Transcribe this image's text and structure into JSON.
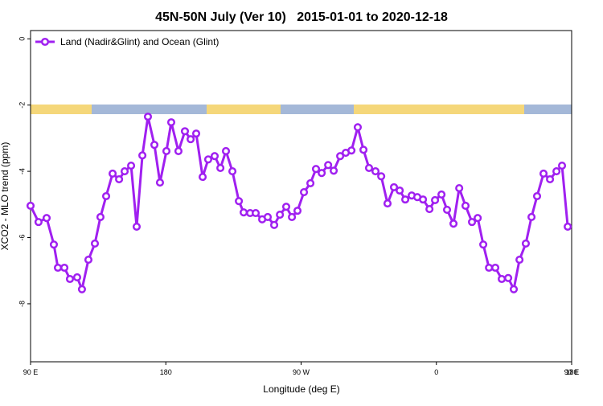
{
  "chart_data": {
    "type": "line",
    "title": "45N-50N July (Ver 10)   2015-01-01 to 2020-12-18",
    "xlabel": "Longitude (deg E)",
    "ylabel": "XCO2 - MLO trend (ppm)",
    "xlim": [
      90,
      450
    ],
    "ylim": [
      -9.75,
      0.25
    ],
    "xticks": [
      {
        "value": 90,
        "label": "90 E"
      },
      180,
      {
        "value": 270,
        "label": "90 W"
      },
      {
        "value": 360,
        "label": "0"
      },
      {
        "value": 450,
        "label": "90 E"
      },
      {
        "value": 540,
        "label": "180"
      }
    ],
    "yticks": [
      0,
      -2,
      -4,
      -6,
      -8
    ],
    "legend": "upper left",
    "series": [
      {
        "name": "Land (Nadir&Glint) and Ocean (Glint)",
        "color": "#a020f0",
        "x": [
          90,
          95.3,
          100.7,
          105.5,
          108.2,
          112.5,
          116.2,
          121,
          124.2,
          128.5,
          132.8,
          136.5,
          140.3,
          144.6,
          148.9,
          152.6,
          156.9,
          160.6,
          164.4,
          168.1,
          172.4,
          176.1,
          180.4,
          183.6,
          188.4,
          192.7,
          196.5,
          200.2,
          204.5,
          208.2,
          212.5,
          216.3,
          220,
          224.3,
          228.6,
          231.8,
          236.1,
          239.8,
          244.1,
          247.8,
          252.1,
          255.9,
          260.1,
          263.9,
          267.6,
          271.9,
          276.2,
          279.9,
          283.7,
          288,
          291.7,
          296,
          299.7,
          303.5,
          307.7,
          311.5,
          315.2,
          319.5,
          323.3,
          327.5,
          331.8,
          335.6,
          339.3,
          343.6,
          347.3,
          351.1,
          355.4,
          359.1,
          363.4,
          367.1,
          371.4,
          375.2,
          379.4,
          383.7,
          387.5,
          391.2,
          395,
          399.2,
          403.5,
          407.8,
          411.5,
          415.3,
          419.5,
          423.3,
          427,
          431.3,
          435.6,
          439.9,
          443.6,
          447.4
        ],
        "values": [
          -5.04,
          -5.53,
          -5.41,
          -6.21,
          -6.91,
          -6.91,
          -7.25,
          -7.2,
          -7.56,
          -6.67,
          -6.18,
          -5.38,
          -4.75,
          -4.07,
          -4.24,
          -4.0,
          -3.83,
          -5.67,
          -3.52,
          -2.35,
          -3.2,
          -4.34,
          -3.39,
          -2.52,
          -3.39,
          -2.79,
          -3.03,
          -2.86,
          -4.17,
          -3.64,
          -3.54,
          -3.9,
          -3.39,
          -4.0,
          -4.9,
          -5.24,
          -5.26,
          -5.26,
          -5.45,
          -5.38,
          -5.62,
          -5.31,
          -5.07,
          -5.38,
          -5.19,
          -4.63,
          -4.36,
          -3.93,
          -4.05,
          -3.81,
          -3.98,
          -3.54,
          -3.44,
          -3.37,
          -2.67,
          -3.35,
          -3.9,
          -4.0,
          -4.15,
          -4.97,
          -4.48,
          -4.58,
          -4.85,
          -4.73,
          -4.78,
          -4.85,
          -5.14,
          -4.87,
          -4.7,
          -5.16,
          -5.58,
          -4.51,
          -5.04,
          -5.53,
          -5.41,
          -6.21,
          -6.91,
          -6.91,
          -7.25,
          -7.22,
          -7.56,
          -6.67,
          -6.18,
          -5.38,
          -4.75,
          -4.07,
          -4.24,
          -4.0,
          -3.83,
          -5.67
        ]
      }
    ]
  }
}
